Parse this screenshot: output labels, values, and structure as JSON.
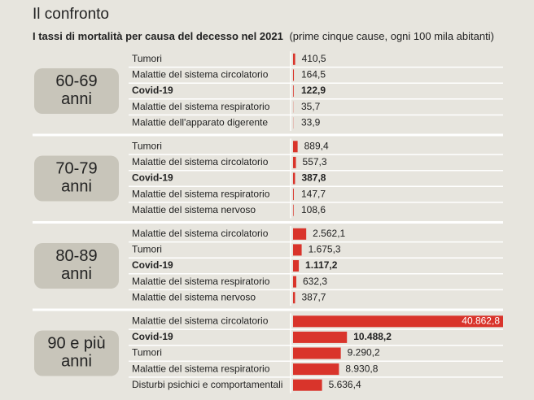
{
  "chart_data": {
    "type": "bar",
    "title": "Il confronto",
    "subtitle_bold": "I tassi di mortalità per causa del decesso nel 2021",
    "subtitle": "(prime cinque cause, ogni 100 mila abitanti)",
    "xlim": [
      0,
      40862.8
    ],
    "color": "#d9342b",
    "groups": [
      {
        "label": "60-69 anni",
        "categories": [
          "Tumori",
          "Malattie del sistema circolatorio",
          "Covid-19",
          "Malattie del sistema respiratorio",
          "Malattie dell'apparato digerente"
        ],
        "values": [
          410.5,
          164.5,
          122.9,
          35.7,
          33.9
        ],
        "value_labels": [
          "410,5",
          "164,5",
          "122,9",
          "35,7",
          "33,9"
        ],
        "highlight_index": 2
      },
      {
        "label": "70-79 anni",
        "categories": [
          "Tumori",
          "Malattie del sistema circolatorio",
          "Covid-19",
          "Malattie del sistema respiratorio",
          "Malattie del sistema nervoso"
        ],
        "values": [
          889.4,
          557.3,
          387.8,
          147.7,
          108.6
        ],
        "value_labels": [
          "889,4",
          "557,3",
          "387,8",
          "147,7",
          "108,6"
        ],
        "highlight_index": 2
      },
      {
        "label": "80-89 anni",
        "categories": [
          "Malattie del sistema circolatorio",
          "Tumori",
          "Covid-19",
          "Malattie del sistema respiratorio",
          "Malattie del sistema nervoso"
        ],
        "values": [
          2562.1,
          1675.3,
          1117.2,
          632.3,
          387.7
        ],
        "value_labels": [
          "2.562,1",
          "1.675,3",
          "1.117,2",
          "632,3",
          "387,7"
        ],
        "highlight_index": 2
      },
      {
        "label": "90 e più anni",
        "categories": [
          "Malattie del sistema circolatorio",
          "Covid-19",
          "Tumori",
          "Malattie del sistema respiratorio",
          "Disturbi psichici e comportamentali"
        ],
        "values": [
          40862.8,
          10488.2,
          9290.2,
          8930.8,
          5636.4
        ],
        "value_labels": [
          "40.862,8",
          "10.488,2",
          "9.290,2",
          "8.930,8",
          "5.636,4"
        ],
        "highlight_index": 1
      }
    ]
  }
}
